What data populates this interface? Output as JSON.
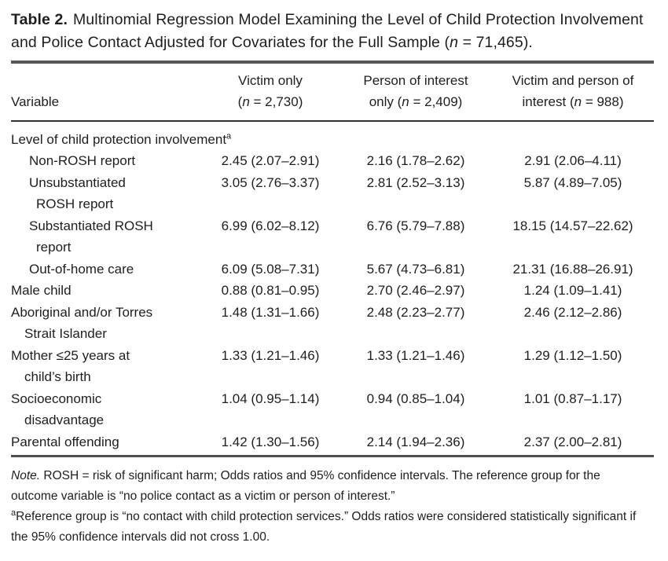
{
  "page": {
    "background": "#ffffff",
    "text_color": "#201d1e",
    "rule_color_top": "#575757",
    "rule_color_header": "#343434",
    "rule_color_bottom": "#4e4e4e"
  },
  "title": {
    "label": "Table 2.",
    "text": "Multinomial Regression Model Examining the Level of Child Protection Involvement and Police Contact Adjusted for Covariates for the Full Sample (",
    "n_symbol": "n",
    "tail": " = 71,465)."
  },
  "table": {
    "columns": [
      {
        "label": "Variable"
      },
      {
        "line1": "Victim only",
        "pre": "(",
        "n": "n",
        "post": " = 2,730)"
      },
      {
        "line1": "Person of interest",
        "pre": "only (",
        "n": "n",
        "post": " = 2,409)"
      },
      {
        "line1": "Victim and person of",
        "pre": "interest (",
        "n": "n",
        "post": " = 988)"
      }
    ],
    "rows": [
      {
        "label_lines": [
          "Level of child protection involvement"
        ],
        "sup": "a",
        "indent": 0,
        "values": [
          "",
          "",
          ""
        ]
      },
      {
        "label_lines": [
          "Non-ROSH report"
        ],
        "sup": "",
        "indent": 1,
        "values": [
          "2.45 (2.07–2.91)",
          "2.16 (1.78–2.62)",
          "2.91 (2.06–4.11)"
        ]
      },
      {
        "label_lines": [
          "Unsubstantiated",
          "ROSH report"
        ],
        "sup": "",
        "indent": 1,
        "values": [
          "3.05 (2.76–3.37)",
          "2.81 (2.52–3.13)",
          "5.87 (4.89–7.05)"
        ]
      },
      {
        "label_lines": [
          "Substantiated ROSH",
          "report"
        ],
        "sup": "",
        "indent": 1,
        "values": [
          "6.99 (6.02–8.12)",
          "6.76 (5.79–7.88)",
          "18.15 (14.57–22.62)"
        ]
      },
      {
        "label_lines": [
          "Out-of-home care"
        ],
        "sup": "",
        "indent": 1,
        "values": [
          "6.09 (5.08–7.31)",
          "5.67 (4.73–6.81)",
          "21.31 (16.88–26.91)"
        ]
      },
      {
        "label_lines": [
          "Male child"
        ],
        "sup": "",
        "indent": 0,
        "values": [
          "0.88 (0.81–0.95)",
          "2.70 (2.46–2.97)",
          "1.24 (1.09–1.41)"
        ]
      },
      {
        "label_lines": [
          "Aboriginal and/or Torres",
          "Strait Islander"
        ],
        "sup": "",
        "indent": 0,
        "values": [
          "1.48 (1.31–1.66)",
          "2.48 (2.23–2.77)",
          "2.46 (2.12–2.86)"
        ]
      },
      {
        "label_lines": [
          "Mother ≤25 years at",
          "child’s birth"
        ],
        "sup": "",
        "indent": 0,
        "values": [
          "1.33 (1.21–1.46)",
          "1.33 (1.21–1.46)",
          "1.29 (1.12–1.50)"
        ]
      },
      {
        "label_lines": [
          "Socioeconomic",
          "disadvantage"
        ],
        "sup": "",
        "indent": 0,
        "values": [
          "1.04 (0.95–1.14)",
          "0.94 (0.85–1.04)",
          "1.01 (0.87–1.17)"
        ]
      },
      {
        "label_lines": [
          "Parental offending"
        ],
        "sup": "",
        "indent": 0,
        "values": [
          "1.42 (1.30–1.56)",
          "2.14 (1.94–2.36)",
          "2.37 (2.00–2.81)"
        ]
      }
    ]
  },
  "notes": {
    "note_lead": "Note.",
    "note_text": " ROSH = risk of significant harm; Odds ratios and 95% confidence intervals. The reference group for the outcome variable is “no police contact as a victim or person of interest.”",
    "footnote_marker": "a",
    "footnote_text": "Reference group is “no contact with child protection services.” Odds ratios were considered statistically significant if the 95% confidence intervals did not cross 1.00."
  }
}
